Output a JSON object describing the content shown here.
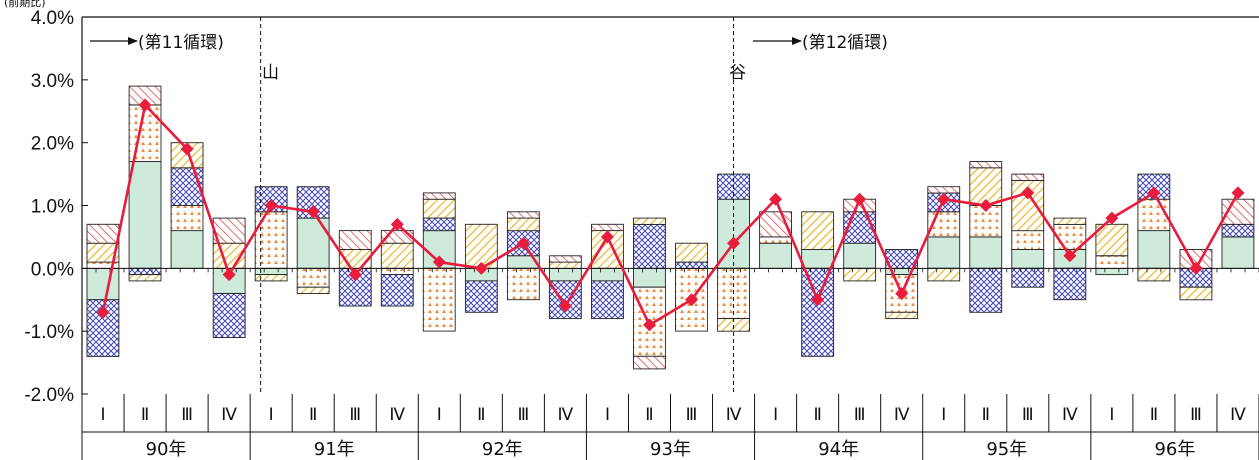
{
  "chart_data": {
    "type": "bar",
    "stacked": true,
    "unit_label": "(前期比)",
    "ylim": [
      -2.0,
      4.0
    ],
    "yticks": [
      "4.0%",
      "3.0%",
      "2.0%",
      "1.0%",
      "0.0%",
      "-1.0%",
      "-2.0%"
    ],
    "ytick_values": [
      4.0,
      3.0,
      2.0,
      1.0,
      0.0,
      -1.0,
      -2.0
    ],
    "quarter_labels": [
      "Ⅰ",
      "Ⅱ",
      "Ⅲ",
      "Ⅳ"
    ],
    "years": [
      "90年",
      "91年",
      "92年",
      "93年",
      "94年",
      "95年",
      "96年"
    ],
    "categories": [
      "90Ⅰ",
      "90Ⅱ",
      "90Ⅲ",
      "90Ⅳ",
      "91Ⅰ",
      "91Ⅱ",
      "91Ⅲ",
      "91Ⅳ",
      "92Ⅰ",
      "92Ⅱ",
      "92Ⅲ",
      "92Ⅳ",
      "93Ⅰ",
      "93Ⅱ",
      "93Ⅲ",
      "93Ⅳ",
      "94Ⅰ",
      "94Ⅱ",
      "94Ⅲ",
      "94Ⅳ",
      "95Ⅰ",
      "95Ⅱ",
      "95Ⅲ",
      "95Ⅳ",
      "96Ⅰ",
      "96Ⅱ",
      "96Ⅲ",
      "96Ⅳ"
    ],
    "series": [
      {
        "key": "green",
        "color": "#cdeadb",
        "values": [
          -0.5,
          1.7,
          0.6,
          -0.4,
          -0.1,
          0.8,
          0.0,
          0.0,
          0.6,
          -0.2,
          0.2,
          -0.2,
          -0.2,
          -0.3,
          0.0,
          1.1,
          0.4,
          0.3,
          0.4,
          -0.1,
          0.5,
          0.5,
          0.3,
          0.3,
          -0.1,
          0.6,
          0.0,
          0.5
        ]
      },
      {
        "key": "orange",
        "color": "#f08a3c",
        "values": [
          0.1,
          0.9,
          0.4,
          0.0,
          0.9,
          -0.3,
          0.0,
          -0.1,
          -1.0,
          0.0,
          -0.5,
          0.0,
          0.0,
          -1.1,
          -1.0,
          -0.8,
          0.1,
          0.0,
          0.0,
          -0.6,
          0.4,
          0.5,
          0.3,
          0.4,
          0.2,
          0.5,
          0.0,
          0.0
        ]
      },
      {
        "key": "blue",
        "color": "#4a4db8",
        "values": [
          -0.9,
          -0.1,
          0.6,
          -0.7,
          0.4,
          0.5,
          -0.6,
          -0.5,
          0.2,
          -0.5,
          0.4,
          -0.6,
          -0.6,
          0.7,
          0.1,
          0.4,
          0.0,
          -1.4,
          0.5,
          0.3,
          0.3,
          -0.7,
          -0.3,
          -0.5,
          0.0,
          0.4,
          -0.3,
          0.2
        ]
      },
      {
        "key": "yellow",
        "color": "#e8b82a",
        "values": [
          0.3,
          -0.1,
          0.4,
          0.4,
          -0.1,
          -0.1,
          0.3,
          0.4,
          0.3,
          0.7,
          0.2,
          0.1,
          0.6,
          0.1,
          0.3,
          -0.2,
          0.0,
          0.6,
          -0.2,
          -0.1,
          -0.2,
          0.6,
          0.8,
          0.1,
          0.5,
          -0.2,
          -0.2,
          0.0
        ]
      },
      {
        "key": "red",
        "color": "#e04848",
        "values": [
          0.3,
          0.3,
          0.0,
          0.4,
          0.0,
          0.0,
          0.3,
          0.2,
          0.1,
          0.0,
          0.1,
          0.1,
          0.1,
          -0.2,
          0.0,
          0.0,
          0.4,
          0.0,
          0.2,
          0.0,
          0.1,
          0.1,
          0.1,
          0.0,
          0.0,
          0.0,
          0.3,
          0.4
        ]
      }
    ],
    "line": {
      "color": "#e81c3c",
      "values": [
        -0.7,
        2.6,
        1.9,
        -0.1,
        1.0,
        0.9,
        -0.1,
        0.7,
        0.1,
        0.0,
        0.4,
        -0.6,
        0.5,
        -0.9,
        -0.5,
        0.4,
        1.1,
        -0.5,
        1.1,
        -0.4,
        1.1,
        1.0,
        1.2,
        0.2,
        0.8,
        1.2,
        0.0,
        1.2
      ]
    },
    "annotations": {
      "cycle11": "(第11循環)",
      "cycle12": "(第12循環)",
      "peak": "山",
      "trough": "谷"
    }
  }
}
